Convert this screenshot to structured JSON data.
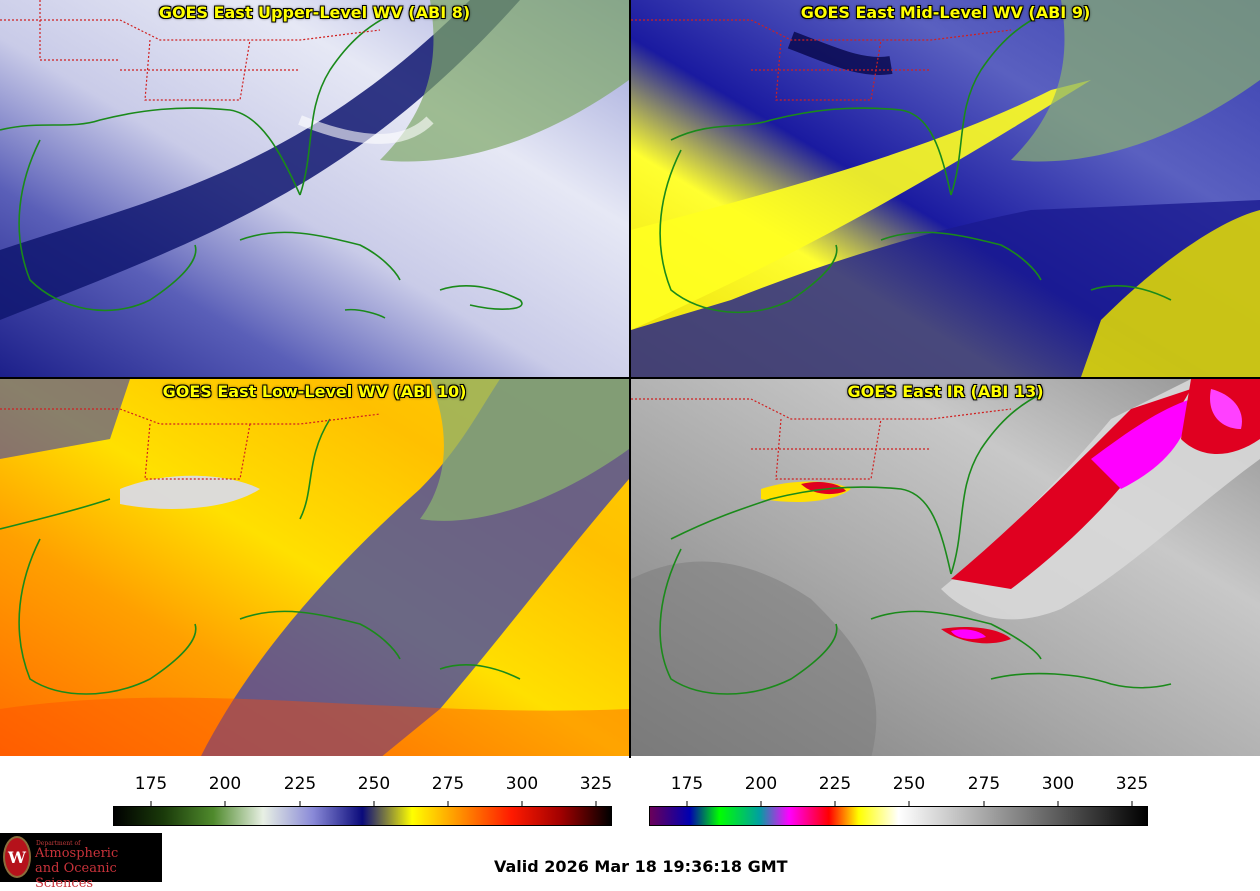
{
  "panels": [
    {
      "title": "GOES East Upper-Level WV (ABI 8)"
    },
    {
      "title": "GOES East Mid-Level WV (ABI 9)"
    },
    {
      "title": "GOES East Low-Level WV (ABI 10)"
    },
    {
      "title": "GOES East IR (ABI 13)"
    }
  ],
  "colorbar_wv": {
    "ticks": [
      "175",
      "200",
      "225",
      "250",
      "275",
      "300",
      "325"
    ],
    "colors": [
      "#000000",
      "#1a3a0a",
      "#4f8a2c",
      "#e8f0e4",
      "#8a8ad8",
      "#0a0a7a",
      "#ffff00",
      "#ff8c00",
      "#ff1a00",
      "#a00000",
      "#000000"
    ]
  },
  "colorbar_ir": {
    "ticks": [
      "175",
      "200",
      "225",
      "250",
      "275",
      "300",
      "325"
    ],
    "colors": [
      "#6a005a",
      "#0000b0",
      "#00ff00",
      "#00a0a0",
      "#ff00ff",
      "#ff0000",
      "#ffff00",
      "#ffffff",
      "#000000"
    ]
  },
  "logo": {
    "line1": "Department of",
    "line2": "Atmospheric",
    "line3": "and Oceanic Sciences",
    "seal": "W"
  },
  "valid_time": "Valid 2026 Mar 18 19:36:18 GMT"
}
